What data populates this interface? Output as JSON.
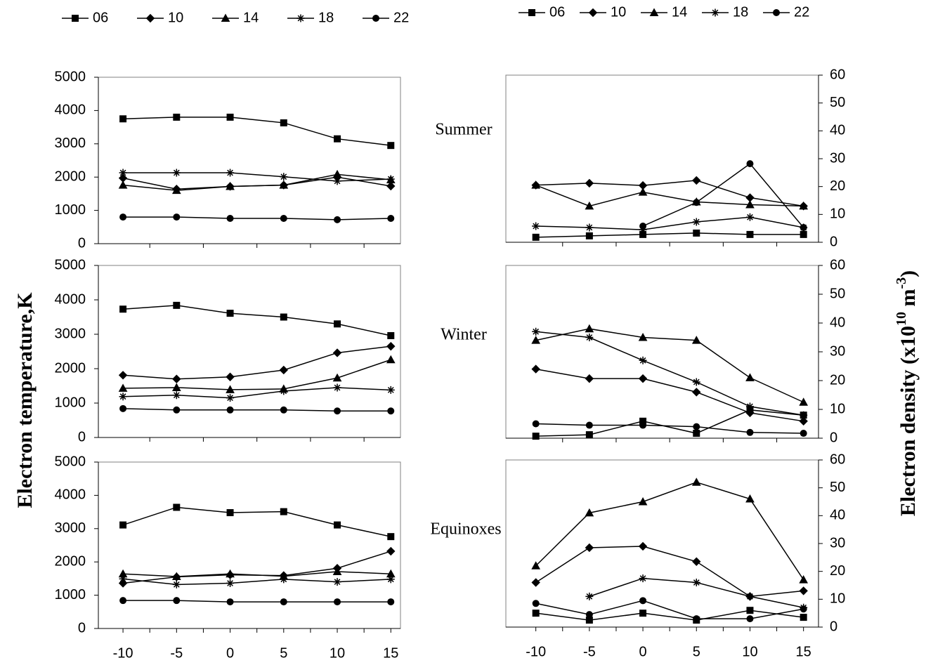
{
  "chart_data": [
    {
      "type": "line",
      "title": "Summer",
      "legend": true,
      "x": [
        -10,
        -5,
        0,
        5,
        10,
        15
      ],
      "xlim": [
        -12.3,
        15.9
      ],
      "ylim": [
        0,
        5000
      ],
      "yticks": [
        0,
        1000,
        2000,
        3000,
        4000,
        5000
      ],
      "yaxis_side": "left",
      "series": [
        {
          "name": "06",
          "color": "#000000",
          "marker": "square",
          "values": [
            3750,
            3800,
            3800,
            3630,
            3150,
            2950
          ]
        },
        {
          "name": "10",
          "color": "#000000",
          "marker": "diamond",
          "values": [
            1970,
            1640,
            1720,
            1760,
            2000,
            1730
          ]
        },
        {
          "name": "14",
          "color": "#000000",
          "marker": "triangle",
          "values": [
            1760,
            1600,
            1720,
            1760,
            2080,
            1920
          ]
        },
        {
          "name": "18",
          "color": "#000000",
          "marker": "asterisk",
          "values": [
            2130,
            2130,
            2130,
            2010,
            1880,
            1940
          ]
        },
        {
          "name": "22",
          "color": "#000000",
          "marker": "circle",
          "values": [
            800,
            800,
            760,
            760,
            720,
            760
          ]
        }
      ]
    },
    {
      "type": "line",
      "legend": true,
      "x": [
        -10,
        -5,
        0,
        5,
        10,
        15
      ],
      "xlim": [
        -12.8,
        16.4
      ],
      "ylim": [
        0,
        60
      ],
      "yticks": [
        0,
        10,
        20,
        30,
        40,
        50,
        60
      ],
      "yaxis_side": "right",
      "series": [
        {
          "name": "06",
          "color": "#000000",
          "marker": "square",
          "values": [
            1.8,
            2.3,
            2.8,
            3.3,
            2.8,
            2.8
          ]
        },
        {
          "name": "10",
          "color": "#000000",
          "marker": "diamond",
          "values": [
            20.5,
            21.2,
            20.4,
            22.2,
            16,
            13
          ]
        },
        {
          "name": "14",
          "color": "#000000",
          "marker": "triangle",
          "values": [
            20.5,
            13,
            18,
            14.5,
            13.5,
            13
          ]
        },
        {
          "name": "18",
          "color": "#000000",
          "marker": "asterisk",
          "values": [
            5.8,
            5.3,
            4.5,
            7.3,
            9,
            5.3
          ]
        },
        {
          "name": "22",
          "color": "#000000",
          "marker": "circle",
          "values": [
            null,
            null,
            5.8,
            14.3,
            28.2,
            5.3
          ]
        }
      ]
    },
    {
      "type": "line",
      "title": "Winter",
      "ylabel": "Electron temperature,K",
      "x": [
        -10,
        -5,
        0,
        5,
        10,
        15
      ],
      "xlim": [
        -12.3,
        15.9
      ],
      "ylim": [
        0,
        5000
      ],
      "yticks": [
        0,
        1000,
        2000,
        3000,
        4000,
        5000
      ],
      "yaxis_side": "left",
      "series": [
        {
          "name": "06",
          "color": "#000000",
          "marker": "square",
          "values": [
            3730,
            3840,
            3610,
            3500,
            3300,
            2960
          ]
        },
        {
          "name": "10",
          "color": "#000000",
          "marker": "diamond",
          "values": [
            1810,
            1700,
            1760,
            1960,
            2460,
            2650
          ]
        },
        {
          "name": "14",
          "color": "#000000",
          "marker": "triangle",
          "values": [
            1430,
            1450,
            1390,
            1410,
            1730,
            2260
          ]
        },
        {
          "name": "18",
          "color": "#000000",
          "marker": "asterisk",
          "values": [
            1190,
            1230,
            1150,
            1350,
            1450,
            1380
          ]
        },
        {
          "name": "22",
          "color": "#000000",
          "marker": "circle",
          "values": [
            840,
            800,
            800,
            800,
            770,
            770
          ]
        }
      ]
    },
    {
      "type": "line",
      "ylabel": [
        "Electron density (x10",
        "10",
        " m",
        "-3",
        ")"
      ],
      "x": [
        -10,
        -5,
        0,
        5,
        10,
        15
      ],
      "xlim": [
        -12.8,
        16.4
      ],
      "ylim": [
        0,
        60
      ],
      "yticks": [
        0,
        10,
        20,
        30,
        40,
        50,
        60
      ],
      "yaxis_side": "right",
      "series": [
        {
          "name": "06",
          "color": "#000000",
          "marker": "square",
          "values": [
            0.7,
            1.2,
            5.9,
            1.7,
            9.8,
            8
          ]
        },
        {
          "name": "10",
          "color": "#000000",
          "marker": "diamond",
          "values": [
            24,
            20.7,
            20.7,
            16,
            8.8,
            5.9
          ]
        },
        {
          "name": "14",
          "color": "#000000",
          "marker": "triangle",
          "values": [
            34,
            38,
            35,
            34,
            21,
            12.5
          ]
        },
        {
          "name": "18",
          "color": "#000000",
          "marker": "asterisk",
          "values": [
            37,
            35,
            27,
            19.5,
            11,
            8
          ]
        },
        {
          "name": "22",
          "color": "#000000",
          "marker": "circle",
          "values": [
            5,
            4.5,
            4.5,
            4,
            2,
            1.7
          ]
        }
      ]
    },
    {
      "type": "line",
      "title": "Equinoxes",
      "x": [
        -10,
        -5,
        0,
        5,
        10,
        15
      ],
      "xlim": [
        -12.3,
        15.9
      ],
      "xticks": [
        -10,
        -5,
        0,
        5,
        10,
        15
      ],
      "ylim": [
        0,
        5000
      ],
      "yticks": [
        0,
        1000,
        2000,
        3000,
        4000,
        5000
      ],
      "yaxis_side": "left",
      "series": [
        {
          "name": "06",
          "color": "#000000",
          "marker": "square",
          "values": [
            3110,
            3640,
            3480,
            3510,
            3110,
            2760
          ]
        },
        {
          "name": "10",
          "color": "#000000",
          "marker": "diamond",
          "values": [
            1360,
            1550,
            1610,
            1590,
            1810,
            2320
          ]
        },
        {
          "name": "14",
          "color": "#000000",
          "marker": "triangle",
          "values": [
            1640,
            1560,
            1640,
            1570,
            1710,
            1640
          ]
        },
        {
          "name": "18",
          "color": "#000000",
          "marker": "asterisk",
          "values": [
            1490,
            1320,
            1360,
            1480,
            1400,
            1480
          ]
        },
        {
          "name": "22",
          "color": "#000000",
          "marker": "circle",
          "values": [
            840,
            840,
            800,
            800,
            800,
            800
          ]
        }
      ]
    },
    {
      "type": "line",
      "x": [
        -10,
        -5,
        0,
        5,
        10,
        15
      ],
      "xlim": [
        -12.8,
        16.4
      ],
      "xticks": [
        -10,
        -5,
        0,
        5,
        10,
        15
      ],
      "ylim": [
        0,
        60
      ],
      "yticks": [
        0,
        10,
        20,
        30,
        40,
        50,
        60
      ],
      "yaxis_side": "right",
      "series": [
        {
          "name": "06",
          "color": "#000000",
          "marker": "square",
          "values": [
            5,
            2.5,
            5,
            2.5,
            6,
            3.5
          ]
        },
        {
          "name": "10",
          "color": "#000000",
          "marker": "diamond",
          "values": [
            16,
            28.5,
            29,
            23.5,
            11,
            13
          ]
        },
        {
          "name": "14",
          "color": "#000000",
          "marker": "triangle",
          "values": [
            22,
            41,
            45,
            52,
            46,
            17
          ]
        },
        {
          "name": "18",
          "color": "#000000",
          "marker": "asterisk",
          "values": [
            null,
            11,
            17.5,
            16,
            11,
            7
          ]
        },
        {
          "name": "22",
          "color": "#000000",
          "marker": "circle",
          "values": [
            8.5,
            4.5,
            9.5,
            3,
            3,
            6.5
          ]
        }
      ]
    }
  ]
}
